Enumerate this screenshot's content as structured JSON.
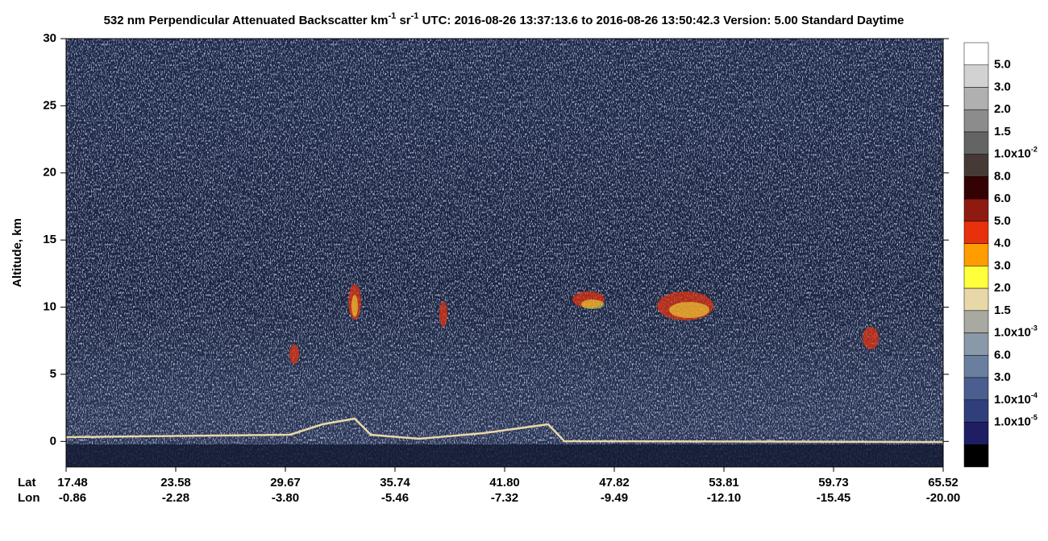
{
  "chart_data": {
    "type": "heatmap",
    "title_parts": [
      "532 nm Perpendicular Attenuated Backscatter km",
      "-1",
      " sr",
      "-1",
      "  UTC: 2016-08-26 13:37:13.6 to 2016-08-26 13:50:42.3  Version: 5.00 Standard Daytime"
    ],
    "y_label": "Altitude, km",
    "ylim": [
      -1.9,
      30
    ],
    "yticks": [
      0,
      5,
      10,
      15,
      20,
      25,
      30
    ],
    "x_row_labels": [
      "Lat",
      "Lon"
    ],
    "lat": [
      "17.48",
      "23.58",
      "29.67",
      "35.74",
      "41.80",
      "47.82",
      "53.81",
      "59.73",
      "65.52"
    ],
    "lon": [
      "-0.86",
      "-2.28",
      "-3.80",
      "-5.46",
      "-7.32",
      "-9.49",
      "-12.10",
      "-15.45",
      "-20.00"
    ],
    "colorbar": {
      "colors": [
        "#ffffff",
        "#d2d2d2",
        "#b0b0b0",
        "#8c8c8c",
        "#646464",
        "#453a36",
        "#340202",
        "#8e1a12",
        "#e8300c",
        "#ff9c00",
        "#ffff3c",
        "#e8d8a8",
        "#a8a9a0",
        "#8a99aa",
        "#6a7f9f",
        "#4a5f8f",
        "#303e7a",
        "#1e1e64",
        "#000000"
      ],
      "labels": [
        "5.0",
        "3.0",
        "2.0",
        "1.5",
        {
          "text": "1.0x10",
          "sup": "-2"
        },
        "8.0",
        "6.0",
        "5.0",
        "4.0",
        "3.0",
        "2.0",
        "1.5",
        {
          "text": "1.0x10",
          "sup": "-3"
        },
        "6.0",
        "3.0",
        {
          "text": "1.0x10",
          "sup": "-4"
        },
        {
          "text": "1.0x10",
          "sup": "-5"
        }
      ]
    }
  }
}
